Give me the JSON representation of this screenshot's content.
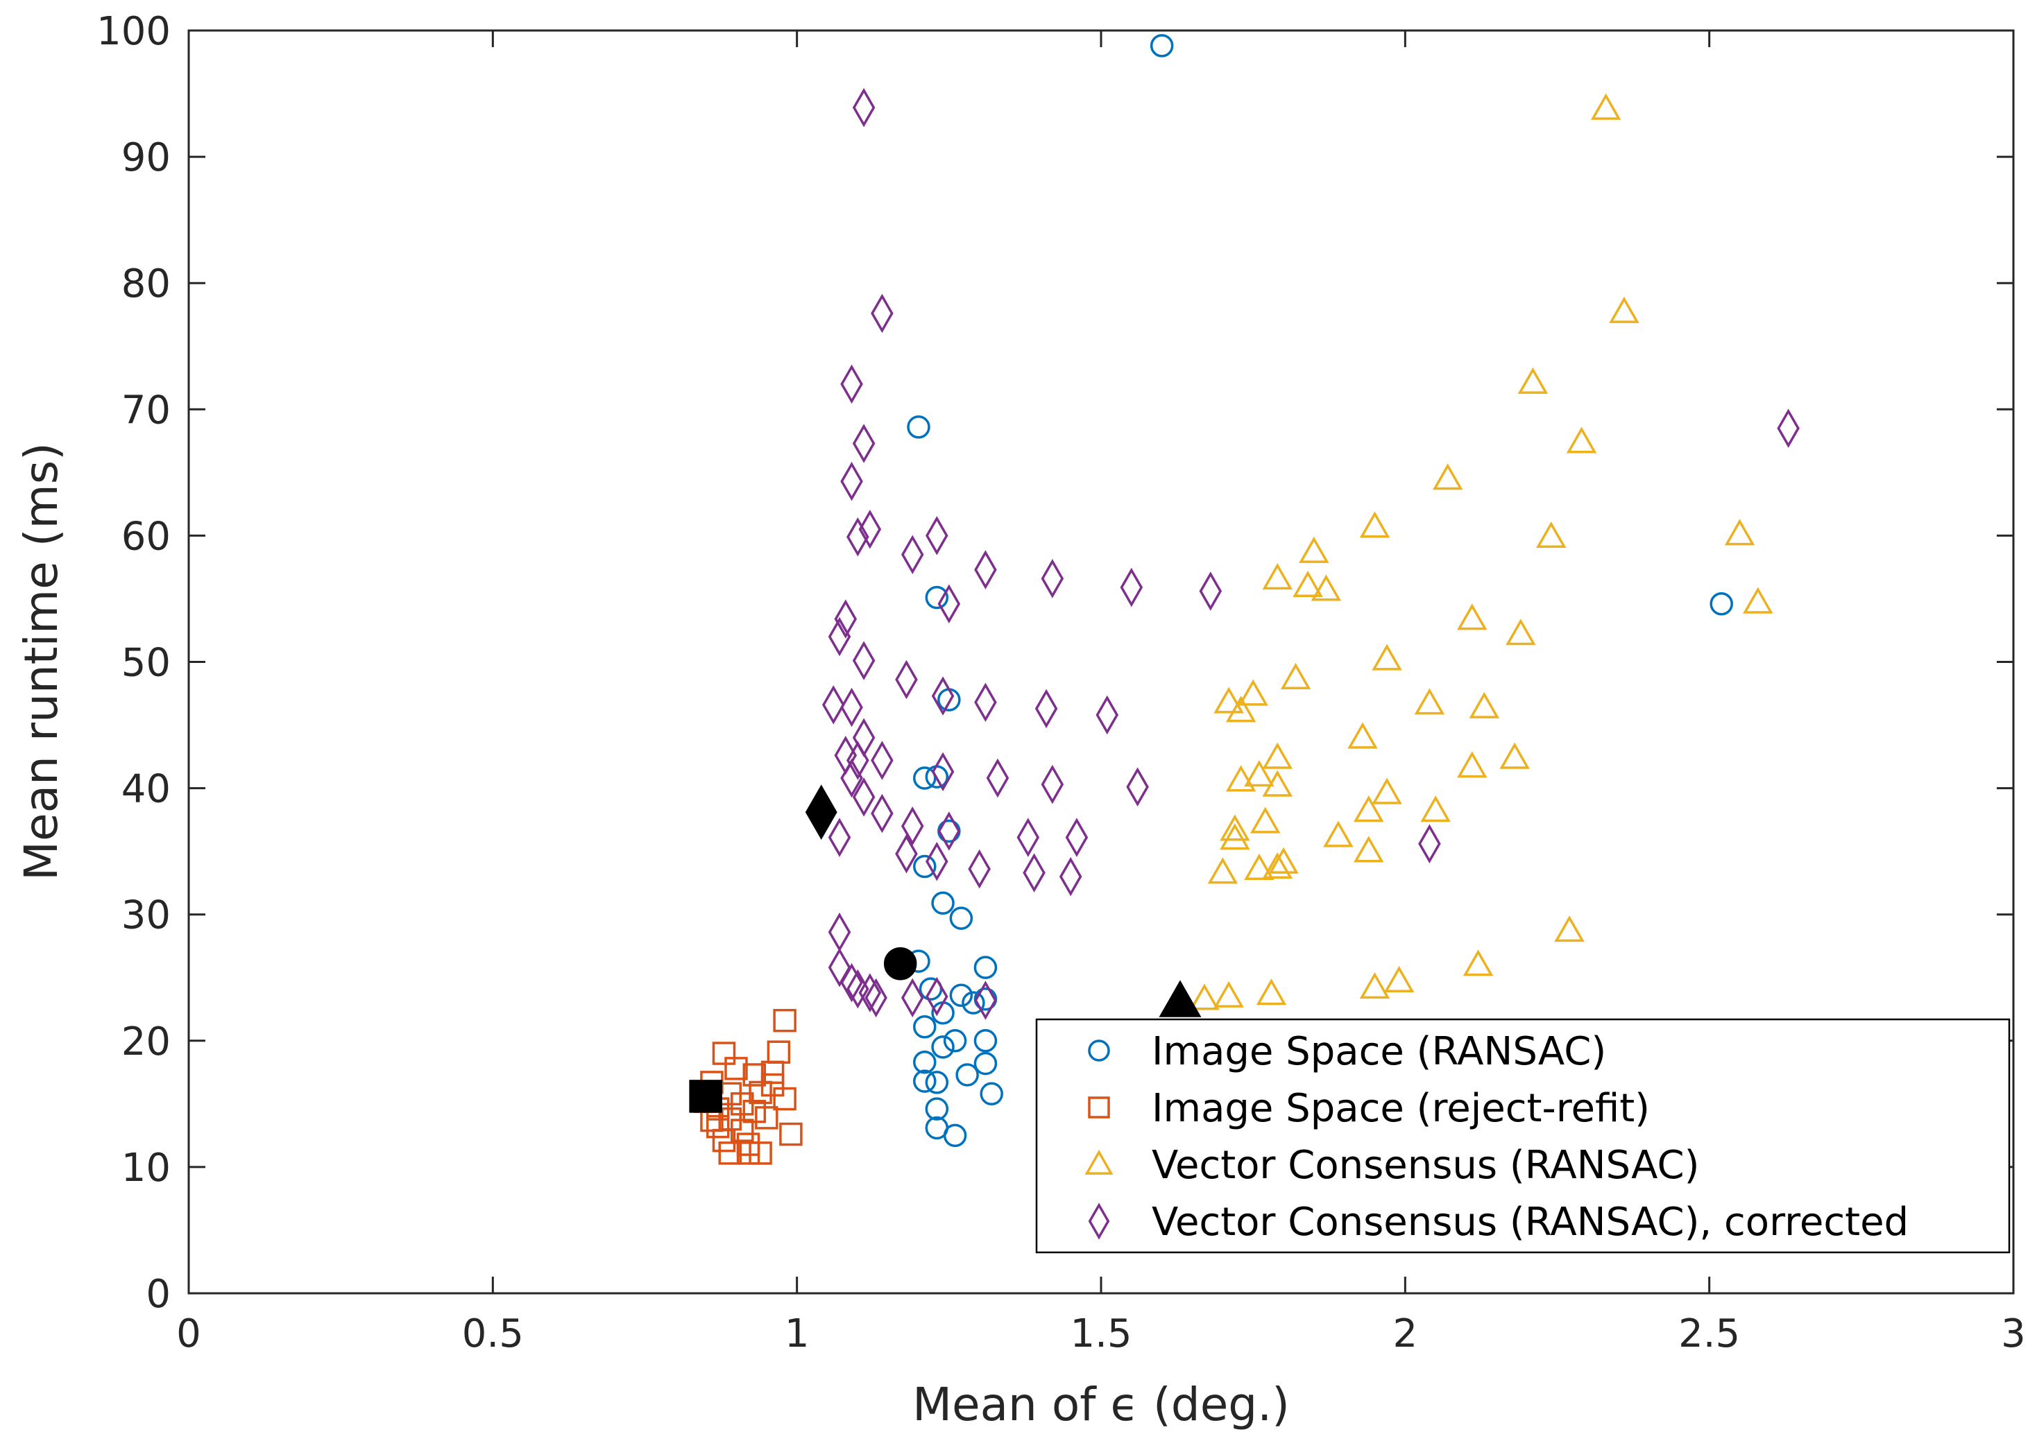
{
  "chart_data": {
    "type": "scatter",
    "title": "",
    "xlabel": "Mean of ϵ (deg.)",
    "ylabel": "Mean runtime (ms)",
    "xlim": [
      0,
      3
    ],
    "ylim": [
      0,
      100
    ],
    "xticks": [
      0,
      0.5,
      1,
      1.5,
      2,
      2.5,
      3
    ],
    "xtick_labels": [
      "0",
      "0.5",
      "1",
      "1.5",
      "2",
      "2.5",
      "3"
    ],
    "yticks": [
      0,
      10,
      20,
      30,
      40,
      50,
      60,
      70,
      80,
      90,
      100
    ],
    "ytick_labels": [
      "0",
      "10",
      "20",
      "30",
      "40",
      "50",
      "60",
      "70",
      "80",
      "90",
      "100"
    ],
    "grid": false,
    "legend_position": "bottom-right",
    "series": [
      {
        "name": "Image Space (RANSAC)",
        "marker": "circle",
        "color": "#0072BD",
        "points": [
          [
            1.6,
            98.8
          ],
          [
            1.2,
            68.6
          ],
          [
            2.52,
            54.6
          ],
          [
            1.23,
            55.1
          ],
          [
            1.25,
            47.0
          ],
          [
            1.21,
            40.8
          ],
          [
            1.23,
            40.9
          ],
          [
            1.25,
            36.6
          ],
          [
            1.21,
            33.8
          ],
          [
            1.24,
            30.9
          ],
          [
            1.27,
            29.7
          ],
          [
            1.2,
            26.3
          ],
          [
            1.22,
            24.1
          ],
          [
            1.27,
            23.6
          ],
          [
            1.31,
            25.8
          ],
          [
            1.29,
            23.0
          ],
          [
            1.31,
            23.3
          ],
          [
            1.24,
            22.2
          ],
          [
            1.21,
            21.1
          ],
          [
            1.26,
            20.0
          ],
          [
            1.24,
            19.5
          ],
          [
            1.31,
            20.0
          ],
          [
            1.21,
            18.3
          ],
          [
            1.31,
            18.2
          ],
          [
            1.28,
            17.3
          ],
          [
            1.21,
            16.8
          ],
          [
            1.23,
            16.7
          ],
          [
            1.32,
            15.8
          ],
          [
            1.23,
            14.6
          ],
          [
            1.23,
            13.1
          ],
          [
            1.26,
            12.5
          ]
        ],
        "mean": [
          1.17,
          26.1
        ]
      },
      {
        "name": "Image Space (reject-refit)",
        "marker": "square",
        "color": "#D95319",
        "points": [
          [
            0.98,
            21.6
          ],
          [
            0.88,
            19.0
          ],
          [
            0.97,
            19.1
          ],
          [
            0.9,
            17.8
          ],
          [
            0.93,
            17.3
          ],
          [
            0.96,
            17.5
          ],
          [
            0.86,
            16.7
          ],
          [
            0.96,
            16.5
          ],
          [
            0.89,
            15.8
          ],
          [
            0.94,
            15.9
          ],
          [
            0.98,
            15.4
          ],
          [
            0.85,
            15.2
          ],
          [
            0.91,
            15.0
          ],
          [
            0.87,
            14.6
          ],
          [
            0.93,
            14.4
          ],
          [
            0.86,
            13.7
          ],
          [
            0.89,
            13.8
          ],
          [
            0.95,
            13.9
          ],
          [
            0.87,
            13.2
          ],
          [
            0.91,
            12.9
          ],
          [
            0.99,
            12.6
          ],
          [
            0.88,
            12.1
          ],
          [
            0.92,
            11.8
          ],
          [
            0.89,
            11.1
          ],
          [
            0.92,
            11.1
          ],
          [
            0.94,
            11.1
          ]
        ],
        "mean": [
          0.85,
          15.6
        ]
      },
      {
        "name": "Vector Consensus (RANSAC)",
        "marker": "triangle",
        "color": "#EDB120",
        "points": [
          [
            2.33,
            93.8
          ],
          [
            2.36,
            77.7
          ],
          [
            2.21,
            72.1
          ],
          [
            2.29,
            67.4
          ],
          [
            2.07,
            64.5
          ],
          [
            1.95,
            60.7
          ],
          [
            2.55,
            60.1
          ],
          [
            2.24,
            59.9
          ],
          [
            1.85,
            58.7
          ],
          [
            1.79,
            56.6
          ],
          [
            1.84,
            56.0
          ],
          [
            1.87,
            55.7
          ],
          [
            2.58,
            54.7
          ],
          [
            2.11,
            53.4
          ],
          [
            2.19,
            52.2
          ],
          [
            1.97,
            50.2
          ],
          [
            1.82,
            48.7
          ],
          [
            1.71,
            46.8
          ],
          [
            2.04,
            46.7
          ],
          [
            1.73,
            46.1
          ],
          [
            2.13,
            46.4
          ],
          [
            1.75,
            47.4
          ],
          [
            1.93,
            44.0
          ],
          [
            2.18,
            42.4
          ],
          [
            1.79,
            42.4
          ],
          [
            2.11,
            41.7
          ],
          [
            1.76,
            41.0
          ],
          [
            1.73,
            40.6
          ],
          [
            1.79,
            40.2
          ],
          [
            1.97,
            39.6
          ],
          [
            1.94,
            38.2
          ],
          [
            2.05,
            38.2
          ],
          [
            1.77,
            37.3
          ],
          [
            1.72,
            36.7
          ],
          [
            1.72,
            36.0
          ],
          [
            1.89,
            36.2
          ],
          [
            1.94,
            35.0
          ],
          [
            1.8,
            34.1
          ],
          [
            1.76,
            33.6
          ],
          [
            1.79,
            33.7
          ],
          [
            1.7,
            33.3
          ],
          [
            2.27,
            28.7
          ],
          [
            2.12,
            26.0
          ],
          [
            1.99,
            24.7
          ],
          [
            1.95,
            24.2
          ],
          [
            1.67,
            23.3
          ],
          [
            1.71,
            23.5
          ],
          [
            1.78,
            23.7
          ]
        ],
        "mean": [
          1.63,
          23.1
        ]
      },
      {
        "name": "Vector Consensus (RANSAC), corrected",
        "marker": "diamond",
        "color": "#7E2F8E",
        "points": [
          [
            1.11,
            93.9
          ],
          [
            1.14,
            77.6
          ],
          [
            1.09,
            72.0
          ],
          [
            2.63,
            68.5
          ],
          [
            1.11,
            67.3
          ],
          [
            1.09,
            64.3
          ],
          [
            1.12,
            60.5
          ],
          [
            1.1,
            59.9
          ],
          [
            1.23,
            60.0
          ],
          [
            1.19,
            58.5
          ],
          [
            1.31,
            57.3
          ],
          [
            1.42,
            56.6
          ],
          [
            1.55,
            55.9
          ],
          [
            1.68,
            55.6
          ],
          [
            1.25,
            54.6
          ],
          [
            1.08,
            53.4
          ],
          [
            1.07,
            52.0
          ],
          [
            1.11,
            50.1
          ],
          [
            1.18,
            48.6
          ],
          [
            1.24,
            47.3
          ],
          [
            1.31,
            46.8
          ],
          [
            1.06,
            46.6
          ],
          [
            1.09,
            46.4
          ],
          [
            1.41,
            46.3
          ],
          [
            1.51,
            45.8
          ],
          [
            1.11,
            44.0
          ],
          [
            1.08,
            42.6
          ],
          [
            1.1,
            42.2
          ],
          [
            1.14,
            42.2
          ],
          [
            1.24,
            41.3
          ],
          [
            1.09,
            40.8
          ],
          [
            1.33,
            40.8
          ],
          [
            1.42,
            40.3
          ],
          [
            1.56,
            40.1
          ],
          [
            1.11,
            39.3
          ],
          [
            1.14,
            38.0
          ],
          [
            1.19,
            37.0
          ],
          [
            1.25,
            36.6
          ],
          [
            1.07,
            36.1
          ],
          [
            1.38,
            36.1
          ],
          [
            1.46,
            36.1
          ],
          [
            2.04,
            35.6
          ],
          [
            1.18,
            34.8
          ],
          [
            1.23,
            34.2
          ],
          [
            1.3,
            33.6
          ],
          [
            1.39,
            33.3
          ],
          [
            1.45,
            33.0
          ],
          [
            1.07,
            28.6
          ],
          [
            1.07,
            25.8
          ],
          [
            1.09,
            24.6
          ],
          [
            1.1,
            24.1
          ],
          [
            1.12,
            23.8
          ],
          [
            1.13,
            23.4
          ],
          [
            1.19,
            23.4
          ],
          [
            1.23,
            23.5
          ],
          [
            1.31,
            23.2
          ]
        ],
        "mean": [
          1.04,
          38.1
        ]
      }
    ]
  }
}
